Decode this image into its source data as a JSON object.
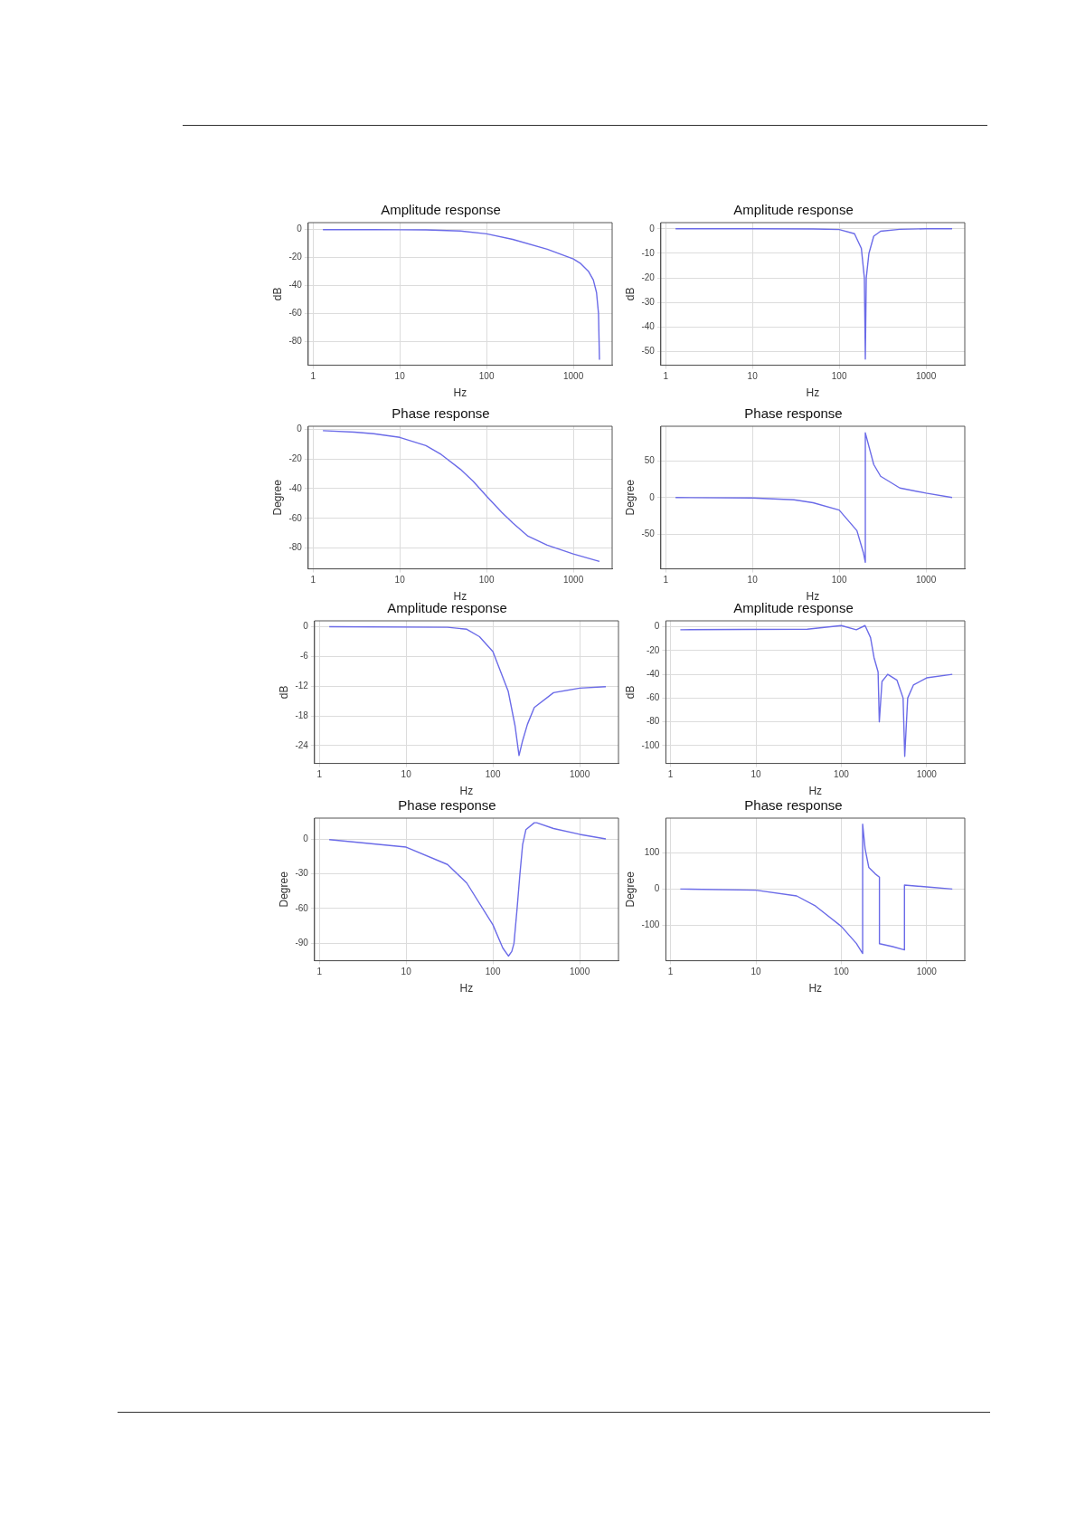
{
  "chart_data": [
    {
      "type": "line",
      "title": "Amplitude response",
      "xlabel": "Hz",
      "ylabel": "dB",
      "log": "x",
      "grid": true,
      "xlim": [
        0.88,
        2800
      ],
      "xticks": [
        1,
        10,
        100,
        1000
      ],
      "ylim": [
        -97,
        5
      ],
      "yticks": [
        0,
        -20,
        -40,
        -60,
        -80
      ],
      "x": [
        1.3,
        5,
        10,
        20,
        50,
        100,
        200,
        500,
        1000,
        1200,
        1500,
        1700,
        1850,
        1950,
        2000
      ],
      "series": [
        {
          "color": "#6b6be8",
          "values": [
            0,
            0,
            -0.1,
            -0.2,
            -1,
            -3,
            -7,
            -14,
            -21,
            -24,
            -30,
            -36,
            -45,
            -60,
            -93
          ]
        }
      ]
    },
    {
      "type": "line",
      "title": "Amplitude response",
      "xlabel": "Hz",
      "ylabel": "dB",
      "log": "x",
      "grid": true,
      "xlim": [
        0.88,
        2800
      ],
      "xticks": [
        1,
        10,
        100,
        1000
      ],
      "ylim": [
        -55.5,
        2.5
      ],
      "yticks": [
        0,
        -10,
        -20,
        -30,
        -40,
        -50
      ],
      "x": [
        1.3,
        10,
        50,
        100,
        150,
        180,
        195,
        200,
        205,
        220,
        250,
        300,
        500,
        1000,
        2000
      ],
      "series": [
        {
          "color": "#6b6be8",
          "values": [
            0,
            0,
            -0.1,
            -0.3,
            -2,
            -8,
            -20,
            -53,
            -20,
            -10,
            -3,
            -1,
            -0.2,
            0,
            0
          ]
        }
      ]
    },
    {
      "type": "line",
      "title": "Phase response",
      "xlabel": "Hz",
      "ylabel": "Degree",
      "log": "x",
      "grid": true,
      "xlim": [
        0.88,
        2800
      ],
      "xticks": [
        1,
        10,
        100,
        1000
      ],
      "ylim": [
        -94,
        2
      ],
      "yticks": [
        0,
        -20,
        -40,
        -60,
        -80
      ],
      "x": [
        1.3,
        3,
        5,
        10,
        20,
        30,
        50,
        70,
        100,
        150,
        200,
        300,
        500,
        1000,
        2000
      ],
      "series": [
        {
          "color": "#6b6be8",
          "values": [
            -1,
            -2,
            -3,
            -5.5,
            -11,
            -17,
            -27,
            -35,
            -45,
            -56,
            -63,
            -72,
            -78,
            -84,
            -89
          ]
        }
      ]
    },
    {
      "type": "line",
      "title": "Phase response",
      "xlabel": "Hz",
      "ylabel": "Degree",
      "log": "x",
      "grid": true,
      "xlim": [
        0.88,
        2800
      ],
      "xticks": [
        1,
        10,
        100,
        1000
      ],
      "ylim": [
        -97,
        97
      ],
      "yticks": [
        50,
        0,
        -50
      ],
      "x": [
        1.3,
        10,
        30,
        50,
        100,
        160,
        190,
        200,
        200,
        250,
        300,
        500,
        1000,
        2000
      ],
      "series": [
        {
          "color": "#6b6be8",
          "values": [
            0,
            -0.5,
            -3,
            -7,
            -17,
            -45,
            -75,
            -88,
            88,
            45,
            29,
            13,
            6,
            0
          ]
        }
      ]
    },
    {
      "type": "line",
      "title": "Amplitude response",
      "xlabel": "Hz",
      "ylabel": "dB",
      "log": "x",
      "grid": true,
      "xlim": [
        0.88,
        2800
      ],
      "xticks": [
        1,
        10,
        100,
        1000
      ],
      "ylim": [
        -27.6,
        1.2
      ],
      "yticks": [
        0,
        -6,
        -12,
        -18,
        -24
      ],
      "x": [
        1.3,
        30,
        50,
        70,
        100,
        150,
        180,
        200,
        220,
        250,
        300,
        500,
        1000,
        2000
      ],
      "series": [
        {
          "color": "#6b6be8",
          "values": [
            0,
            -0.1,
            -0.5,
            -2,
            -5,
            -13,
            -20,
            -26,
            -23,
            -19.7,
            -16.3,
            -13.3,
            -12.4,
            -12.1
          ]
        }
      ]
    },
    {
      "type": "line",
      "title": "Amplitude response",
      "xlabel": "Hz",
      "ylabel": "dB",
      "log": "x",
      "grid": true,
      "xlim": [
        0.88,
        2800
      ],
      "xticks": [
        1,
        10,
        100,
        1000
      ],
      "ylim": [
        -115,
        5
      ],
      "yticks": [
        0,
        -20,
        -40,
        -60,
        -80,
        -100
      ],
      "x": [
        1.3,
        40,
        100,
        150,
        190,
        220,
        242,
        270,
        279,
        300,
        350,
        450,
        530,
        554,
        600,
        700,
        1000,
        2000
      ],
      "series": [
        {
          "color": "#6b6be8",
          "values": [
            -2.5,
            -2,
            1,
            -2.5,
            1,
            -9,
            -26,
            -38,
            -80,
            -46,
            -40,
            -45,
            -60,
            -109,
            -60,
            -49,
            -43,
            -40
          ]
        }
      ]
    },
    {
      "type": "line",
      "title": "Phase response",
      "xlabel": "Hz",
      "ylabel": "Degree",
      "log": "x",
      "grid": true,
      "xlim": [
        0.88,
        2800
      ],
      "xticks": [
        1,
        10,
        100,
        1000
      ],
      "ylim": [
        -105,
        18
      ],
      "yticks": [
        0,
        -30,
        -60,
        -90
      ],
      "x": [
        1.3,
        10,
        30,
        50,
        100,
        130,
        151,
        165,
        175,
        190,
        205,
        220,
        240,
        300,
        320,
        500,
        1000,
        2000
      ],
      "series": [
        {
          "color": "#6b6be8",
          "values": [
            -0.5,
            -7,
            -22,
            -38,
            -74,
            -94,
            -101,
            -97,
            -90,
            -60,
            -30,
            -5,
            8,
            14,
            14,
            9,
            4,
            0
          ]
        }
      ]
    },
    {
      "type": "line",
      "title": "Phase response",
      "xlabel": "Hz",
      "ylabel": "Degree",
      "log": "x",
      "grid": true,
      "xlim": [
        0.88,
        2800
      ],
      "xticks": [
        1,
        10,
        100,
        1000
      ],
      "ylim": [
        -198,
        196
      ],
      "yticks": [
        100,
        0,
        -100
      ],
      "x": [
        1.3,
        10,
        30,
        50,
        100,
        150,
        178,
        178,
        190,
        210,
        250,
        280,
        280,
        400,
        550,
        550,
        1000,
        2000
      ],
      "series": [
        {
          "color": "#6b6be8",
          "values": [
            0,
            -3,
            -19,
            -47,
            -103,
            -150,
            -178,
            179,
            112,
            60,
            42,
            33,
            -151,
            -159,
            -168,
            11,
            6,
            0
          ]
        }
      ]
    }
  ]
}
